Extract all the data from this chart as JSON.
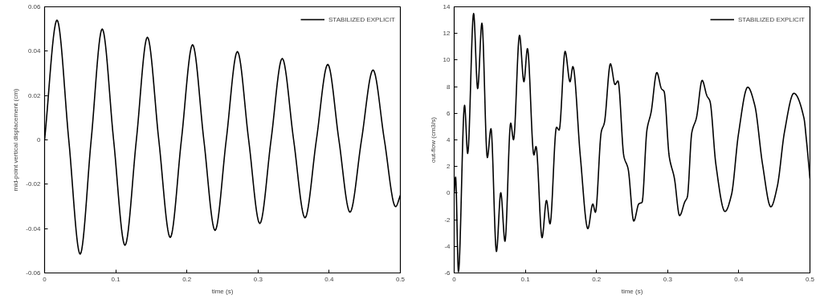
{
  "chart_data": [
    {
      "type": "line",
      "xlabel": "time (s)",
      "ylabel": "mid-point vertical displacement (cm)",
      "xlim": [
        0,
        0.5
      ],
      "ylim": [
        -0.06,
        0.06
      ],
      "xticks": [
        0,
        0.1,
        0.2,
        0.3,
        0.4,
        0.5
      ],
      "yticks": [
        -0.06,
        -0.04,
        -0.02,
        0,
        0.02,
        0.04,
        0.06
      ],
      "grid": false,
      "legend": "top right",
      "marker": "none",
      "line_style": "solid",
      "series": [
        {
          "name": "STABILIZED EXPLICIT",
          "color": "#000000",
          "x": [
            0,
            0.0175,
            0.034,
            0.05,
            0.0655,
            0.081,
            0.097,
            0.113,
            0.129,
            0.1445,
            0.1605,
            0.1766,
            0.1923,
            0.208,
            0.2238,
            0.2396,
            0.2553,
            0.271,
            0.2868,
            0.3025,
            0.3183,
            0.334,
            0.35,
            0.366,
            0.382,
            0.398,
            0.4136,
            0.4292,
            0.4454,
            0.4616,
            0.4775,
            0.4933,
            0.5
          ],
          "values": [
            0,
            0.054,
            0,
            -0.0515,
            0,
            0.05,
            0,
            -0.0475,
            0,
            0.0463,
            0,
            -0.044,
            0,
            0.0429,
            0,
            -0.0408,
            0,
            0.0398,
            0,
            -0.0377,
            0,
            0.0367,
            0,
            -0.0351,
            0,
            0.034,
            0,
            -0.0326,
            0,
            0.0315,
            0,
            -0.0301,
            -0.025
          ]
        }
      ]
    },
    {
      "type": "line",
      "xlabel": "time (s)",
      "ylabel": "out-flow (cm3/s)",
      "xlim": [
        0,
        0.5
      ],
      "ylim": [
        -6,
        14
      ],
      "xticks": [
        0,
        0.1,
        0.2,
        0.3,
        0.4,
        0.5
      ],
      "yticks": [
        -6,
        -4,
        -2,
        0,
        2,
        4,
        6,
        8,
        10,
        12,
        14
      ],
      "grid": false,
      "legend": "top right",
      "marker": "none",
      "line_style": "solid",
      "series": [
        {
          "name": "STABILIZED EXPLICIT",
          "color": "#000000",
          "x": [
            0,
            0.002,
            0.006,
            0.0146,
            0.019,
            0.0273,
            0.033,
            0.039,
            0.0466,
            0.0517,
            0.0594,
            0.0655,
            0.0714,
            0.0794,
            0.0834,
            0.0918,
            0.098,
            0.103,
            0.112,
            0.115,
            0.1235,
            0.1297,
            0.1347,
            0.1438,
            0.1475,
            0.1559,
            0.1628,
            0.1668,
            0.1773,
            0.1879,
            0.1948,
            0.1985,
            0.2068,
            0.211,
            0.2196,
            0.2261,
            0.2302,
            0.2385,
            0.2444,
            0.2524,
            0.2596,
            0.264,
            0.2709,
            0.2768,
            0.2848,
            0.2913,
            0.295,
            0.3022,
            0.3095,
            0.3168,
            0.3241,
            0.3277,
            0.3339,
            0.3405,
            0.3485,
            0.3551,
            0.3594,
            0.3678,
            0.3806,
            0.3897,
            0.3995,
            0.4126,
            0.4224,
            0.4334,
            0.445,
            0.4541,
            0.4643,
            0.4774,
            0.4916,
            0.495,
            0.5
          ],
          "values": [
            0,
            1.2,
            -5.9,
            6.6,
            2.98,
            13.5,
            7.85,
            12.77,
            2.67,
            4.84,
            -4.39,
            0.03,
            -3.62,
            5.26,
            4.01,
            11.86,
            8.37,
            10.86,
            2.87,
            3.5,
            -3.35,
            -0.55,
            -2.31,
            4.95,
            4.74,
            10.65,
            8.37,
            9.51,
            2.76,
            -2.67,
            -0.82,
            -1.44,
            4.63,
            5.26,
            9.72,
            8.16,
            8.43,
            2.76,
            1.84,
            -2.1,
            -0.8,
            -0.7,
            4.74,
            6.09,
            9.06,
            7.85,
            7.64,
            2.76,
            1.11,
            -1.69,
            -0.66,
            -0.28,
            4.53,
            5.67,
            8.47,
            7.33,
            6.92,
            2.15,
            -1.38,
            -0.13,
            4.43,
            7.96,
            6.61,
            2.15,
            -1.03,
            0.5,
            4.63,
            7.5,
            5.63,
            4.0,
            1.1
          ]
        }
      ]
    }
  ]
}
